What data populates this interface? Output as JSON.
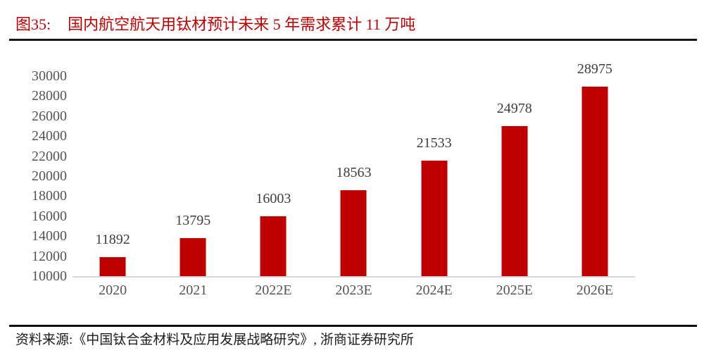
{
  "figure": {
    "label": "图35:",
    "title": "国内航空航天用钛材预计未来 5 年需求累计 11 万吨",
    "source": "资料来源:《中国钛合金材料及应用发展战略研究》, 浙商证券研究所"
  },
  "chart_data": {
    "type": "bar",
    "categories": [
      "2020",
      "2021",
      "2022E",
      "2023E",
      "2024E",
      "2025E",
      "2026E"
    ],
    "values": [
      11892,
      13795,
      16003,
      18563,
      21533,
      24978,
      28975
    ],
    "data_labels": [
      11892,
      13795,
      16003,
      18563,
      21533,
      24978,
      28975
    ],
    "title": "国内航空航天用钛材预计未来 5 年需求累计 11 万吨",
    "xlabel": "",
    "ylabel": "",
    "ylim": [
      10000,
      30000
    ],
    "yticks": [
      10000,
      12000,
      14000,
      16000,
      18000,
      20000,
      22000,
      24000,
      26000,
      28000,
      30000
    ],
    "grid": false,
    "legend": "none",
    "bar_color": "#c00000"
  },
  "colors": {
    "title_red": "#c00000",
    "bar_red": "#c00000",
    "axis_text_gray": "#545454",
    "data_label_gray": "#3d3d3d",
    "baseline_gray": "#d6d6d6",
    "rule_dark": "#161616"
  }
}
